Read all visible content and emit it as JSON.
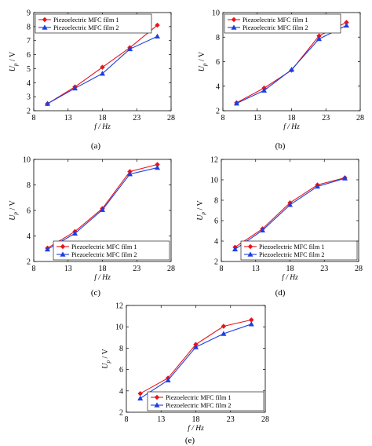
{
  "chart_data": [
    {
      "panel_label": "(a)",
      "type": "line",
      "xlabel": "f / Hz",
      "ylabel_main": "U",
      "ylabel_sub": "p",
      "ylabel_unit": " / V",
      "xlim": [
        8,
        28
      ],
      "ylim": [
        2,
        9
      ],
      "xticks": [
        "8",
        "13",
        "18",
        "23",
        "28"
      ],
      "yticks": [
        "2",
        "3",
        "4",
        "5",
        "6",
        "7",
        "8",
        "9"
      ],
      "legend_position": "top-left",
      "x": [
        10,
        14,
        18,
        22,
        26
      ],
      "series": [
        {
          "name": "Piezoelectric MFC film 1",
          "color": "#e8141b",
          "marker": "diamond",
          "values": [
            2.5,
            3.7,
            5.1,
            6.5,
            8.1
          ]
        },
        {
          "name": "Piezoelectric MFC film 2",
          "color": "#1d3fe0",
          "marker": "triangle",
          "values": [
            2.5,
            3.6,
            4.65,
            6.4,
            7.3
          ]
        }
      ]
    },
    {
      "panel_label": "(b)",
      "type": "line",
      "xlabel": "f / Hz",
      "ylabel_main": "U",
      "ylabel_sub": "p",
      "ylabel_unit": " / V",
      "xlim": [
        8,
        28
      ],
      "ylim": [
        2,
        10
      ],
      "xticks": [
        "8",
        "13",
        "18",
        "23",
        "28"
      ],
      "yticks": [
        "2",
        "4",
        "6",
        "8",
        "10"
      ],
      "legend_position": "top-left",
      "x": [
        10,
        14,
        18,
        22,
        26
      ],
      "series": [
        {
          "name": "Piezoelectric MFC film 1",
          "color": "#e8141b",
          "marker": "diamond",
          "values": [
            2.65,
            3.85,
            5.3,
            8.1,
            9.2
          ]
        },
        {
          "name": "Piezoelectric MFC film 2",
          "color": "#1d3fe0",
          "marker": "triangle",
          "values": [
            2.6,
            3.65,
            5.35,
            7.85,
            8.95
          ]
        }
      ]
    },
    {
      "panel_label": "(c)",
      "type": "line",
      "xlabel": "f / Hz",
      "ylabel_main": "U",
      "ylabel_sub": "p",
      "ylabel_unit": " / V",
      "xlim": [
        8,
        28
      ],
      "ylim": [
        2,
        10
      ],
      "xticks": [
        "8",
        "13",
        "18",
        "23",
        "28"
      ],
      "yticks": [
        "2",
        "4",
        "6",
        "8",
        "10"
      ],
      "legend_position": "bottom-right",
      "x": [
        10,
        14,
        18,
        22,
        26
      ],
      "series": [
        {
          "name": "Piezoelectric MFC film 1",
          "color": "#e8141b",
          "marker": "diamond",
          "values": [
            3.05,
            4.35,
            6.15,
            9.05,
            9.6
          ]
        },
        {
          "name": "Piezoelectric MFC film 2",
          "color": "#1d3fe0",
          "marker": "triangle",
          "values": [
            2.95,
            4.2,
            6.05,
            8.85,
            9.35
          ]
        }
      ]
    },
    {
      "panel_label": "(d)",
      "type": "line",
      "xlabel": "f / Hz",
      "ylabel_main": "U",
      "ylabel_sub": "p",
      "ylabel_unit": " / V",
      "xlim": [
        8,
        28
      ],
      "ylim": [
        2,
        12
      ],
      "xticks": [
        "8",
        "13",
        "18",
        "23",
        "28"
      ],
      "yticks": [
        "2",
        "4",
        "6",
        "8",
        "10",
        "12"
      ],
      "legend_position": "bottom-right",
      "x": [
        10,
        14,
        18,
        22,
        26
      ],
      "series": [
        {
          "name": "Piezoelectric MFC film 1",
          "color": "#e8141b",
          "marker": "diamond",
          "values": [
            3.4,
            5.2,
            7.75,
            9.5,
            10.2
          ]
        },
        {
          "name": "Piezoelectric MFC film 2",
          "color": "#1d3fe0",
          "marker": "triangle",
          "values": [
            3.2,
            5.05,
            7.55,
            9.35,
            10.15
          ]
        }
      ]
    },
    {
      "panel_label": "(e)",
      "type": "line",
      "xlabel": "f / Hz",
      "ylabel_main": "U",
      "ylabel_sub": "p",
      "ylabel_unit": " / V",
      "xlim": [
        8,
        28
      ],
      "ylim": [
        2,
        12
      ],
      "xticks": [
        "8",
        "13",
        "18",
        "23",
        "28"
      ],
      "yticks": [
        "2",
        "4",
        "6",
        "8",
        "10",
        "12"
      ],
      "legend_position": "bottom-right",
      "x": [
        10,
        14,
        18,
        22,
        26
      ],
      "series": [
        {
          "name": "Piezoelectric MFC film 1",
          "color": "#e8141b",
          "marker": "diamond",
          "values": [
            3.75,
            5.2,
            8.35,
            10.05,
            10.65
          ]
        },
        {
          "name": "Piezoelectric MFC film 2",
          "color": "#1d3fe0",
          "marker": "triangle",
          "values": [
            3.3,
            5.0,
            8.1,
            9.35,
            10.25
          ]
        }
      ]
    }
  ]
}
